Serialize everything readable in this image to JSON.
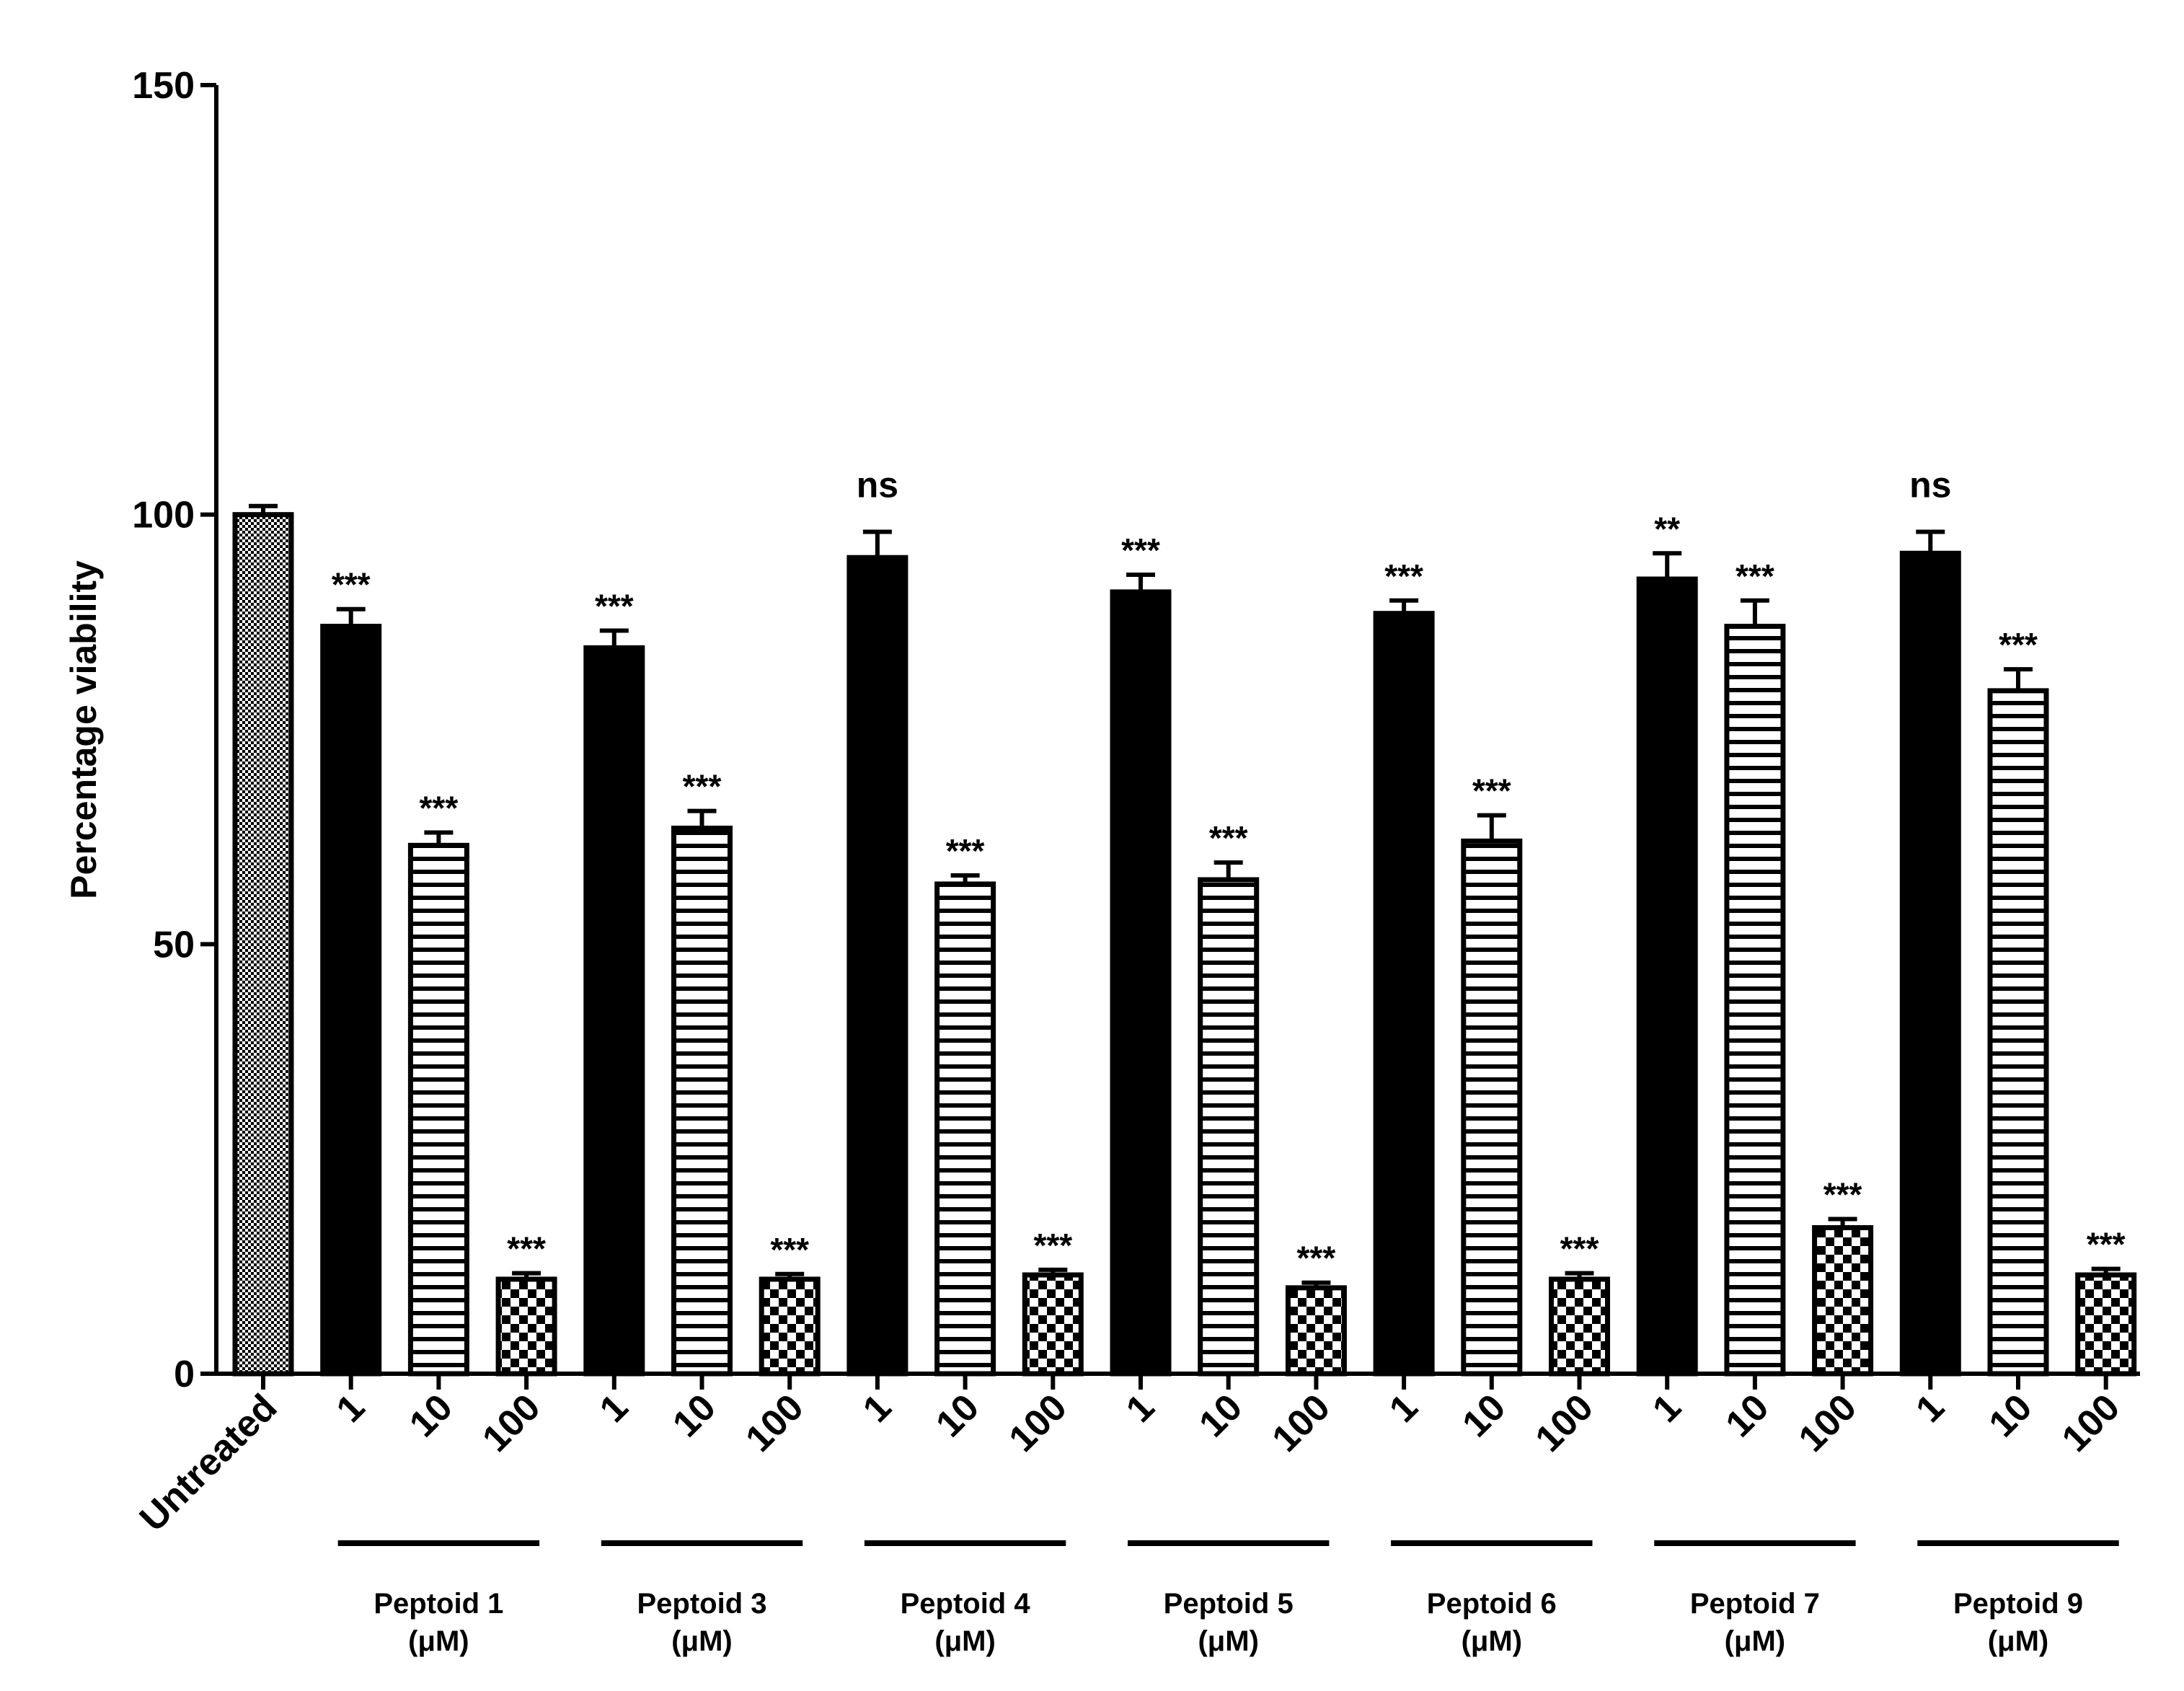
{
  "chart_data": {
    "type": "bar",
    "title": "",
    "xlabel": "",
    "ylabel": "Percentage viability",
    "ylim": [
      0,
      150
    ],
    "yticks": [
      0,
      50,
      100,
      150
    ],
    "grid": false,
    "unit_label": "(μM)",
    "bars": [
      {
        "label": "Untreated",
        "value": 100,
        "error": 1,
        "pattern": "fine",
        "annotation": ""
      },
      {
        "label": "1",
        "value": 87,
        "error": 2,
        "pattern": "solid",
        "annotation": "***"
      },
      {
        "label": "10",
        "value": 61.5,
        "error": 1.5,
        "pattern": "stripes",
        "annotation": "***"
      },
      {
        "label": "100",
        "value": 11,
        "error": 0.7,
        "pattern": "checker",
        "annotation": "***"
      },
      {
        "label": "1",
        "value": 84.5,
        "error": 2,
        "pattern": "solid",
        "annotation": "***"
      },
      {
        "label": "10",
        "value": 63.5,
        "error": 2,
        "pattern": "stripes",
        "annotation": "***"
      },
      {
        "label": "100",
        "value": 11,
        "error": 0.6,
        "pattern": "checker",
        "annotation": "***"
      },
      {
        "label": "1",
        "value": 95,
        "error": 3,
        "pattern": "solid",
        "annotation": "ns"
      },
      {
        "label": "10",
        "value": 57,
        "error": 1,
        "pattern": "stripes",
        "annotation": "***"
      },
      {
        "label": "100",
        "value": 11.5,
        "error": 0.6,
        "pattern": "checker",
        "annotation": "***"
      },
      {
        "label": "1",
        "value": 91,
        "error": 2,
        "pattern": "solid",
        "annotation": "***"
      },
      {
        "label": "10",
        "value": 57.5,
        "error": 2,
        "pattern": "stripes",
        "annotation": "***"
      },
      {
        "label": "100",
        "value": 10,
        "error": 0.6,
        "pattern": "checker",
        "annotation": "***"
      },
      {
        "label": "1",
        "value": 88.5,
        "error": 1.5,
        "pattern": "solid",
        "annotation": "***"
      },
      {
        "label": "10",
        "value": 62,
        "error": 3,
        "pattern": "stripes",
        "annotation": "***"
      },
      {
        "label": "100",
        "value": 11,
        "error": 0.7,
        "pattern": "checker",
        "annotation": "***"
      },
      {
        "label": "1",
        "value": 92.5,
        "error": 3,
        "pattern": "solid",
        "annotation": "**"
      },
      {
        "label": "10",
        "value": 87,
        "error": 3,
        "pattern": "stripes",
        "annotation": "***"
      },
      {
        "label": "100",
        "value": 17,
        "error": 1,
        "pattern": "checker",
        "annotation": "***"
      },
      {
        "label": "1",
        "value": 95.5,
        "error": 2.5,
        "pattern": "solid",
        "annotation": "ns"
      },
      {
        "label": "10",
        "value": 79.5,
        "error": 2.5,
        "pattern": "stripes",
        "annotation": "***"
      },
      {
        "label": "100",
        "value": 11.5,
        "error": 0.7,
        "pattern": "checker",
        "annotation": "***"
      }
    ],
    "groups": [
      {
        "name": "Peptoid 1",
        "bar_indices": [
          1,
          2,
          3
        ]
      },
      {
        "name": "Peptoid 3",
        "bar_indices": [
          4,
          5,
          6
        ]
      },
      {
        "name": "Peptoid 4",
        "bar_indices": [
          7,
          8,
          9
        ]
      },
      {
        "name": "Peptoid 5",
        "bar_indices": [
          10,
          11,
          12
        ]
      },
      {
        "name": "Peptoid 6",
        "bar_indices": [
          13,
          14,
          15
        ]
      },
      {
        "name": "Peptoid 7",
        "bar_indices": [
          16,
          17,
          18
        ]
      },
      {
        "name": "Peptoid 9",
        "bar_indices": [
          19,
          20,
          21
        ]
      }
    ]
  }
}
